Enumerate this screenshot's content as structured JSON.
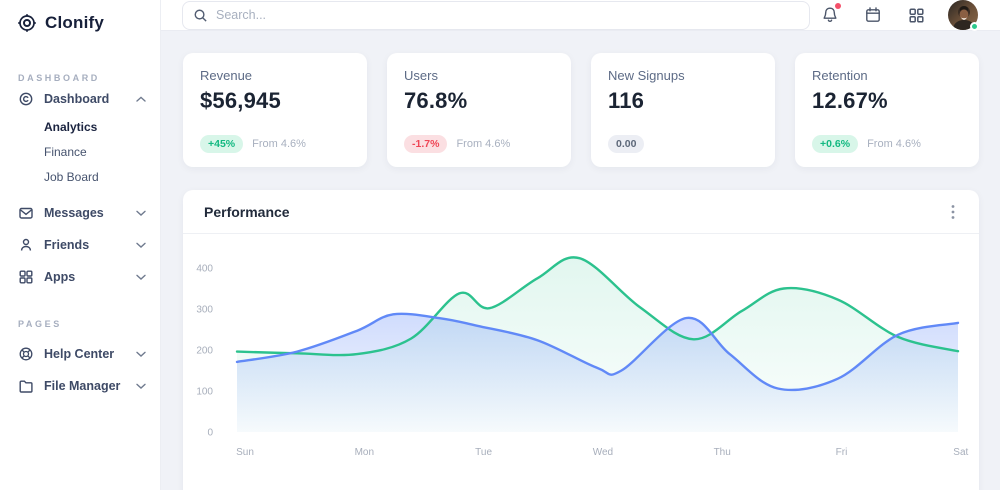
{
  "brand": {
    "name": "Clonify"
  },
  "sidebar": {
    "sections": [
      {
        "label": "DASHBOARD",
        "items": [
          {
            "label": "Dashboard",
            "icon": "dashboard-icon",
            "expanded": true,
            "children": [
              "Analytics",
              "Finance",
              "Job Board"
            ],
            "active_child": "Analytics"
          },
          {
            "label": "Messages",
            "icon": "messages-icon"
          },
          {
            "label": "Friends",
            "icon": "friends-icon"
          },
          {
            "label": "Apps",
            "icon": "apps-icon"
          }
        ]
      },
      {
        "label": "PAGES",
        "items": [
          {
            "label": "Help Center",
            "icon": "help-icon"
          },
          {
            "label": "File Manager",
            "icon": "folder-icon"
          }
        ]
      }
    ]
  },
  "topbar": {
    "search_placeholder": "Search...",
    "icons": [
      "bell-icon",
      "calendar-icon",
      "apps-grid-icon",
      "avatar"
    ],
    "has_notification": true,
    "online": true
  },
  "stats": [
    {
      "label": "Revenue",
      "value": "$56,945",
      "badge": "+45%",
      "badge_type": "up",
      "note": "From 4.6%"
    },
    {
      "label": "Users",
      "value": "76.8%",
      "badge": "-1.7%",
      "badge_type": "down",
      "note": "From 4.6%"
    },
    {
      "label": "New Signups",
      "value": "116",
      "badge": "0.00",
      "badge_type": "neutral",
      "note": ""
    },
    {
      "label": "Retention",
      "value": "12.67%",
      "badge": "+0.6%",
      "badge_type": "up",
      "note": "From 4.6%"
    }
  ],
  "chart": {
    "title": "Performance"
  },
  "chart_data": {
    "type": "area",
    "title": "Performance",
    "x_labels": [
      "Sun",
      "Mon",
      "Tue",
      "Wed",
      "Thu",
      "Fri",
      "Sat"
    ],
    "y_ticks": [
      0,
      100,
      200,
      300,
      400
    ],
    "ylim": [
      0,
      440
    ],
    "grid": false,
    "legend": "none",
    "series": [
      {
        "name": "series-green",
        "color": "#2cc28e",
        "x": [
          0,
          0.5,
          1,
          1.45,
          1.85,
          2.1,
          2.5,
          2.85,
          3.35,
          3.8,
          4.2,
          4.55,
          5,
          5.5,
          6
        ],
        "values": [
          196,
          192,
          190,
          228,
          338,
          302,
          375,
          424,
          305,
          226,
          295,
          350,
          323,
          232,
          197
        ],
        "fill_opacity_top": 0.14,
        "fill_opacity_bottom": 0.02
      },
      {
        "name": "series-blue",
        "color": "#6189f7",
        "x": [
          0,
          0.5,
          1,
          1.3,
          1.7,
          2,
          2.5,
          3,
          3.2,
          3.74,
          4.1,
          4.5,
          5,
          5.5,
          6
        ],
        "values": [
          171,
          196,
          247,
          287,
          277,
          259,
          224,
          156,
          150,
          278,
          190,
          106,
          130,
          237,
          266
        ],
        "fill_opacity_top": 0.3,
        "fill_opacity_bottom": 0.03
      }
    ]
  },
  "colors": {
    "page_bg": "#f0f2f7",
    "card_bg": "#ffffff",
    "accent_green": "#2cc28e",
    "accent_blue": "#6189f7",
    "badge_up_bg": "#d8f6e9",
    "badge_up_text": "#12b981",
    "badge_down_bg": "#fbdfe2",
    "badge_down_text": "#ef4656",
    "badge_neutral_bg": "#eceef4",
    "badge_neutral_text": "#5d6879",
    "notification_dot": "#f4506a",
    "online_dot": "#2dc98c"
  }
}
